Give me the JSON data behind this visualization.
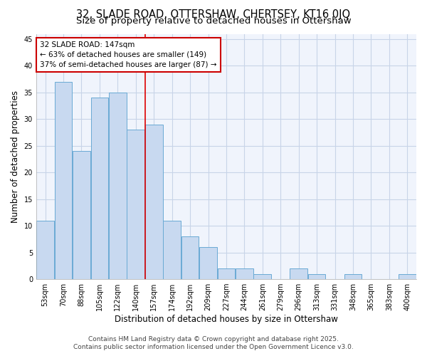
{
  "title_line1": "32, SLADE ROAD, OTTERSHAW, CHERTSEY, KT16 0JQ",
  "title_line2": "Size of property relative to detached houses in Ottershaw",
  "xlabel": "Distribution of detached houses by size in Ottershaw",
  "ylabel": "Number of detached properties",
  "categories": [
    "53sqm",
    "70sqm",
    "88sqm",
    "105sqm",
    "122sqm",
    "140sqm",
    "157sqm",
    "174sqm",
    "192sqm",
    "209sqm",
    "227sqm",
    "244sqm",
    "261sqm",
    "279sqm",
    "296sqm",
    "313sqm",
    "331sqm",
    "348sqm",
    "365sqm",
    "383sqm",
    "400sqm"
  ],
  "values": [
    11,
    37,
    24,
    34,
    35,
    28,
    29,
    11,
    8,
    6,
    2,
    2,
    1,
    0,
    2,
    1,
    0,
    1,
    0,
    0,
    1
  ],
  "bar_color": "#c8d9f0",
  "bar_edge_color": "#6aaad4",
  "highlight_index": 5,
  "vline_color": "#dd0000",
  "annotation_text": "32 SLADE ROAD: 147sqm\n← 63% of detached houses are smaller (149)\n37% of semi-detached houses are larger (87) →",
  "annotation_box_color": "#ffffff",
  "annotation_border_color": "#cc0000",
  "ylim": [
    0,
    46
  ],
  "yticks": [
    0,
    5,
    10,
    15,
    20,
    25,
    30,
    35,
    40,
    45
  ],
  "background_color": "#ffffff",
  "plot_background_color": "#f0f4fc",
  "grid_color": "#c8d4e8",
  "footer_line1": "Contains HM Land Registry data © Crown copyright and database right 2025.",
  "footer_line2": "Contains public sector information licensed under the Open Government Licence v3.0.",
  "title_fontsize": 10.5,
  "subtitle_fontsize": 9.5,
  "axis_label_fontsize": 8.5,
  "tick_fontsize": 7,
  "annotation_fontsize": 7.5,
  "footer_fontsize": 6.5
}
